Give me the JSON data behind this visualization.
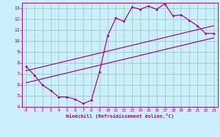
{
  "bg_color": "#cceeff",
  "line_color": "#990099",
  "grid_color": "#99ccbb",
  "xlabel": "Windchill (Refroidissement éolien,°C)",
  "xlabel_color": "#990099",
  "tick_color": "#990099",
  "xlim": [
    -0.5,
    23.5
  ],
  "ylim": [
    4,
    13.5
  ],
  "yticks": [
    4,
    5,
    6,
    7,
    8,
    9,
    10,
    11,
    12,
    13
  ],
  "xticks": [
    0,
    1,
    2,
    3,
    4,
    5,
    6,
    7,
    8,
    9,
    10,
    11,
    12,
    13,
    14,
    15,
    16,
    17,
    18,
    19,
    20,
    21,
    22,
    23
  ],
  "line1_x": [
    0,
    1,
    2,
    3,
    4,
    5,
    6,
    7,
    8,
    9,
    10,
    11,
    12,
    13,
    14,
    15,
    16,
    17,
    18,
    19,
    20,
    21,
    22,
    23
  ],
  "line1_y": [
    7.7,
    6.9,
    6.0,
    5.5,
    4.9,
    4.9,
    4.7,
    4.3,
    4.6,
    7.2,
    10.5,
    12.1,
    11.8,
    13.1,
    12.9,
    13.2,
    12.9,
    13.4,
    12.3,
    12.4,
    11.9,
    11.4,
    10.7,
    10.7
  ],
  "line2_x": [
    0,
    23
  ],
  "line2_y": [
    6.2,
    10.3
  ],
  "line3_x": [
    0,
    23
  ],
  "line3_y": [
    7.3,
    11.4
  ],
  "figsize": [
    3.2,
    2.0
  ],
  "dpi": 100
}
